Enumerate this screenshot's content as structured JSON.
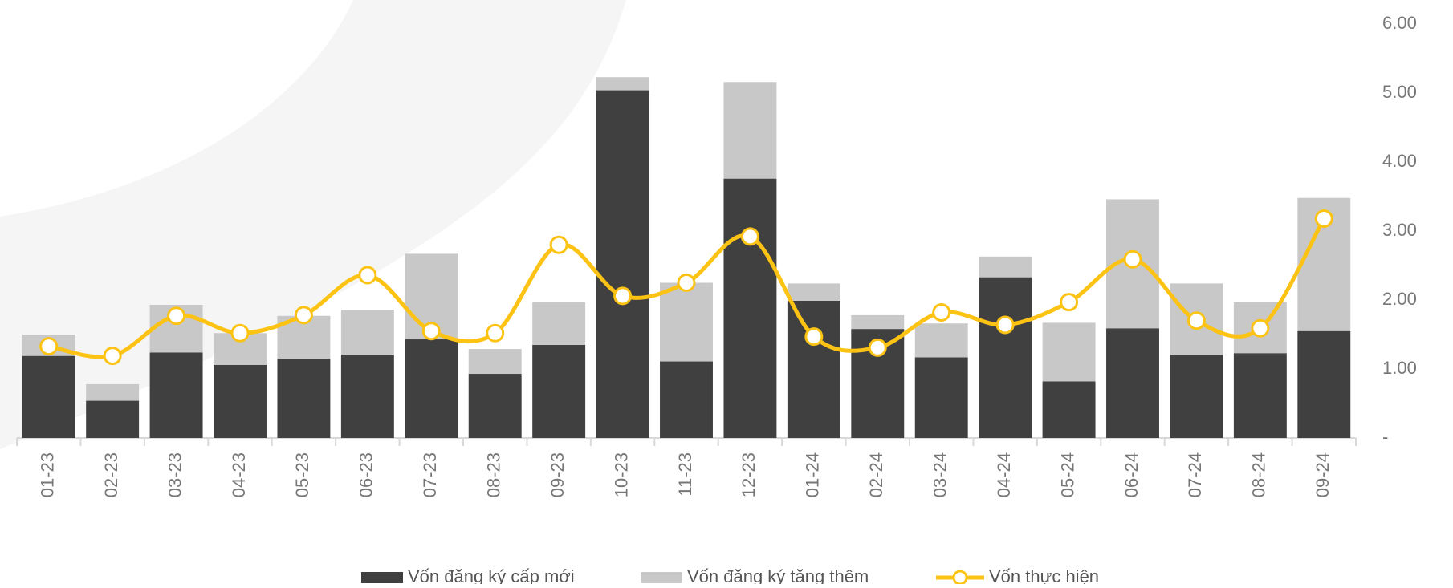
{
  "chart_data": {
    "type": "bar",
    "categories": [
      "01-23",
      "02-23",
      "03-23",
      "04-23",
      "05-23",
      "06-23",
      "07-23",
      "08-23",
      "09-23",
      "10-23",
      "11-23",
      "12-23",
      "01-24",
      "02-24",
      "03-24",
      "04-24",
      "05-24",
      "06-24",
      "07-24",
      "08-24",
      "09-24"
    ],
    "series": [
      {
        "name": "Vốn đăng ký cấp mới",
        "type": "bar",
        "color": "#404040",
        "values": [
          1.19,
          0.54,
          1.24,
          1.06,
          1.15,
          1.21,
          1.43,
          0.93,
          1.35,
          5.04,
          1.11,
          3.76,
          1.99,
          1.58,
          1.17,
          2.33,
          0.82,
          1.59,
          1.21,
          1.23,
          1.55
        ]
      },
      {
        "name": "Vốn đăng ký tăng thêm",
        "type": "bar",
        "color": "#c8c8c8",
        "values": [
          0.31,
          0.24,
          0.69,
          0.46,
          0.62,
          0.65,
          1.24,
          0.36,
          0.62,
          0.19,
          1.14,
          1.4,
          0.25,
          0.2,
          0.49,
          0.3,
          0.85,
          1.87,
          1.03,
          0.74,
          1.93
        ]
      },
      {
        "name": "Vốn thực hiện",
        "type": "line",
        "color": "#fcc314",
        "values": [
          1.33,
          1.19,
          1.77,
          1.52,
          1.78,
          2.36,
          1.55,
          1.52,
          2.8,
          2.06,
          2.25,
          2.92,
          1.47,
          1.31,
          1.82,
          1.64,
          1.97,
          2.59,
          1.7,
          1.59,
          3.18
        ]
      }
    ],
    "stacked": true,
    "ylim": [
      0,
      6
    ],
    "yticks": [
      {
        "value": 0,
        "label": "-"
      },
      {
        "value": 1,
        "label": "1.00"
      },
      {
        "value": 2,
        "label": "2.00"
      },
      {
        "value": 3,
        "label": "3.00"
      },
      {
        "value": 4,
        "label": "4.00"
      },
      {
        "value": 5,
        "label": "5.00"
      },
      {
        "value": 6,
        "label": "6.00"
      }
    ],
    "y_axis_side": "right",
    "legend": "bottom"
  }
}
